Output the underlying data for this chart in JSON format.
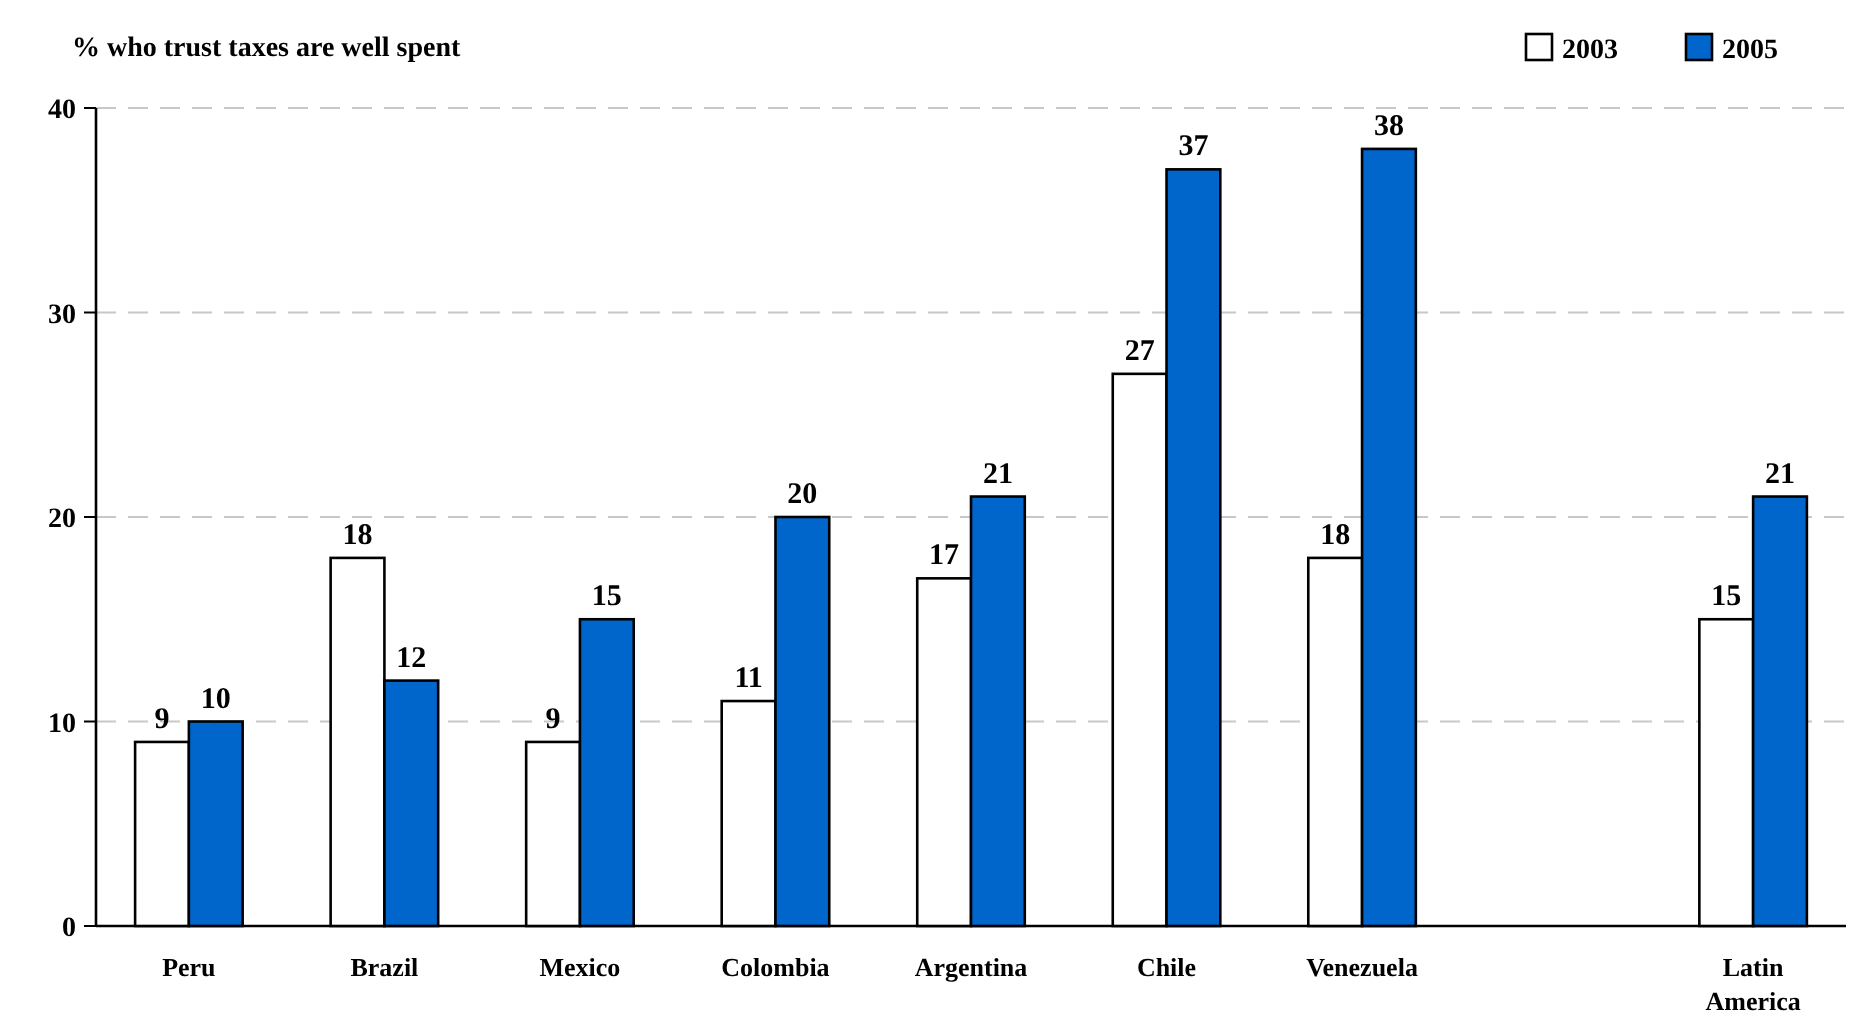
{
  "chart_data": {
    "type": "bar",
    "title": "% who trust taxes are well spent",
    "categories": [
      "Peru",
      "Brazil",
      "Mexico",
      "Colombia",
      "Argentina",
      "Chile",
      "Venezuela",
      null,
      "Latin America"
    ],
    "series": [
      {
        "name": "2003",
        "color": "#ffffff",
        "values": [
          9,
          18,
          9,
          11,
          17,
          27,
          18,
          null,
          15
        ]
      },
      {
        "name": "2005",
        "color": "#0066cc",
        "values": [
          10,
          12,
          15,
          20,
          21,
          37,
          38,
          null,
          21
        ]
      }
    ],
    "ylim": [
      0,
      40
    ],
    "yticks": [
      0,
      10,
      20,
      30,
      40
    ],
    "grid": "y",
    "legend": "top right",
    "data_labels": true
  }
}
